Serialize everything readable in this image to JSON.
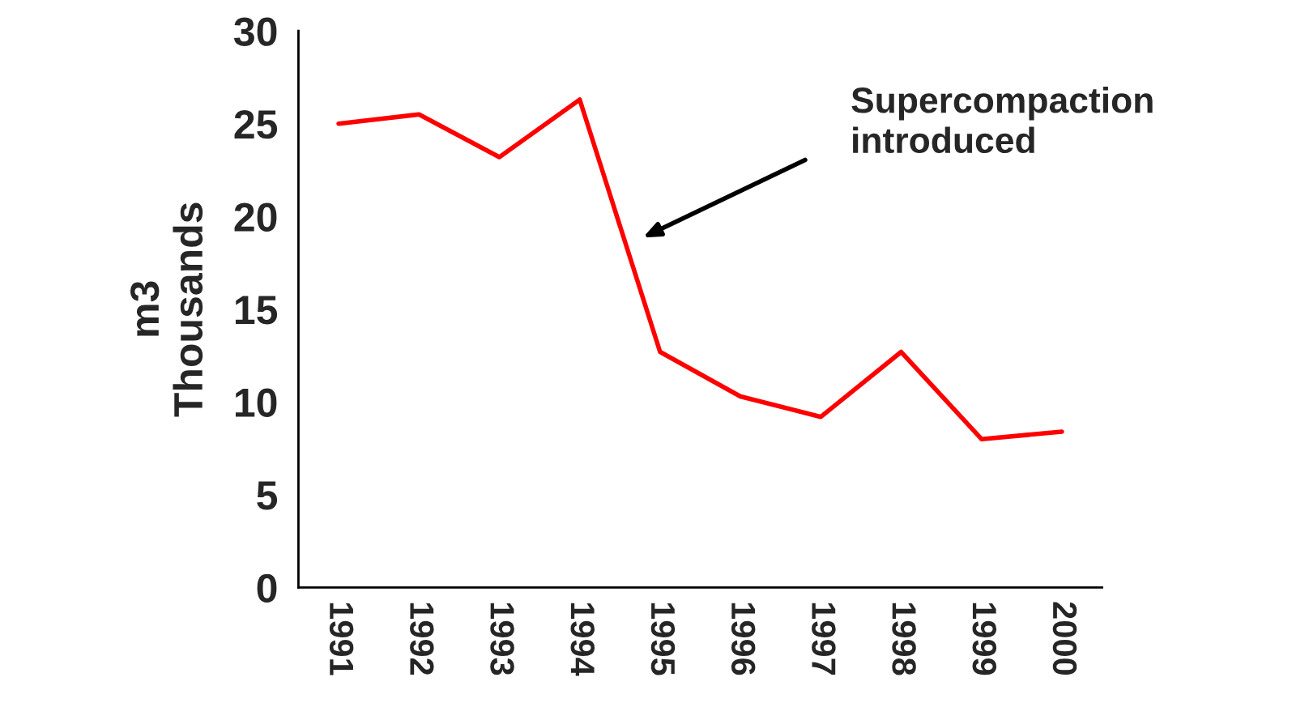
{
  "chart_data": {
    "type": "line",
    "ylabel": "m3\nThousands",
    "categories": [
      "1991",
      "1992",
      "1993",
      "1994",
      "1995",
      "1996",
      "1997",
      "1998",
      "1999",
      "2000"
    ],
    "series": [
      {
        "color": "#ff0000",
        "values": [
          25.0,
          25.5,
          23.2,
          26.3,
          12.7,
          10.3,
          9.2,
          12.7,
          8.0,
          8.4
        ]
      }
    ],
    "ylim": [
      0,
      30
    ],
    "yticks": [
      0,
      5,
      10,
      15,
      20,
      25,
      30
    ],
    "annotations": [
      "Supercompaction\nintroduced"
    ],
    "grid": false,
    "legend": false,
    "marker": "none",
    "line_style": "solid"
  }
}
